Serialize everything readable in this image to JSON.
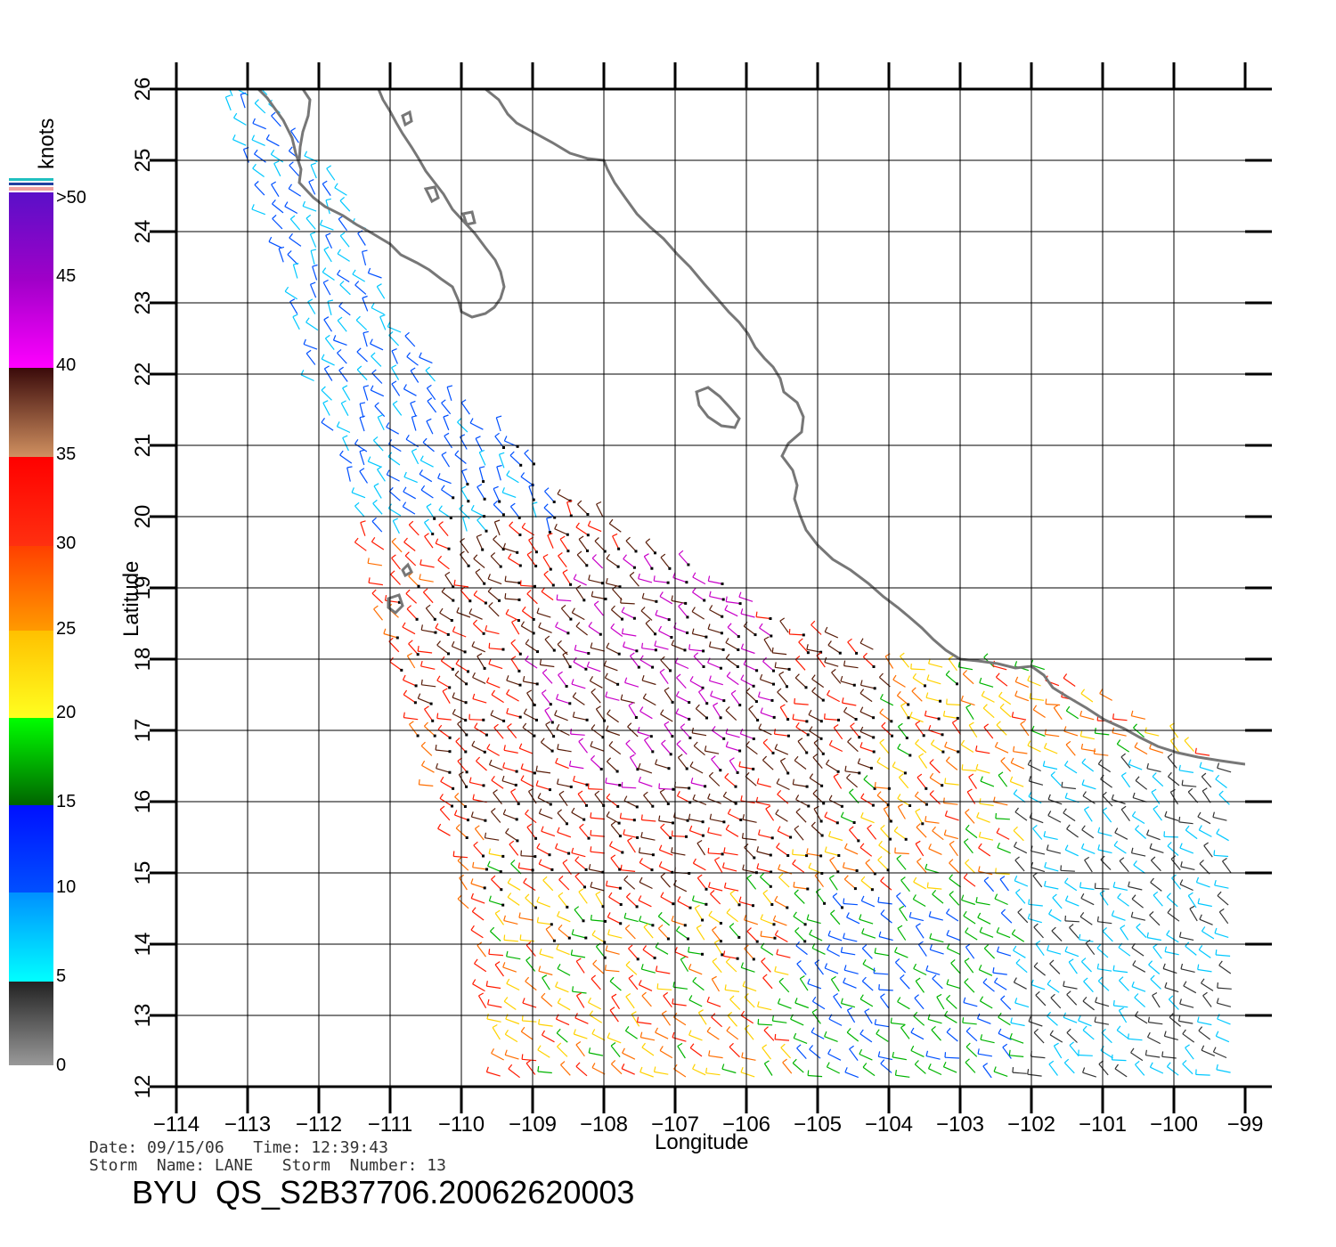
{
  "legend": {
    "unit": "knots",
    "labels": [
      ">50",
      "45",
      "40",
      "35",
      "30",
      "25",
      "20",
      "15",
      "10",
      "5",
      "0"
    ]
  },
  "axes": {
    "xlabel": "Longitude",
    "ylabel": "Latitude",
    "xticks": [
      "−114",
      "−113",
      "−112",
      "−111",
      "−110",
      "−109",
      "−108",
      "−107",
      "−106",
      "−105",
      "−104",
      "−103",
      "−102",
      "−101",
      "−100",
      "−99"
    ],
    "yticks": [
      "12",
      "13",
      "14",
      "15",
      "16",
      "17",
      "18",
      "19",
      "20",
      "21",
      "22",
      "23",
      "24",
      "25",
      "26"
    ],
    "xrange": [
      -114,
      -99
    ],
    "yrange": [
      12,
      26
    ]
  },
  "info": {
    "line1": "Date: 09/15/06   Time: 12:39:43",
    "line2": "Storm  Name: LANE   Storm  Number: 13",
    "product": "BYU  QS_S2B37706.20062620003"
  },
  "colors": {
    "speed_0_5": "#333333",
    "speed_5_10": "#00c8ff",
    "speed_10_15": "#0050ff",
    "speed_15_20": "#00b400",
    "speed_20_25": "#ffd200",
    "speed_25_30": "#ff6e00",
    "speed_30_35": "#ff1a00",
    "speed_35_40": "#5a1e0a",
    "speed_40_45": "#c800c8",
    "speed_45_50": "#6a00c8",
    "coastline": "#777777"
  }
}
